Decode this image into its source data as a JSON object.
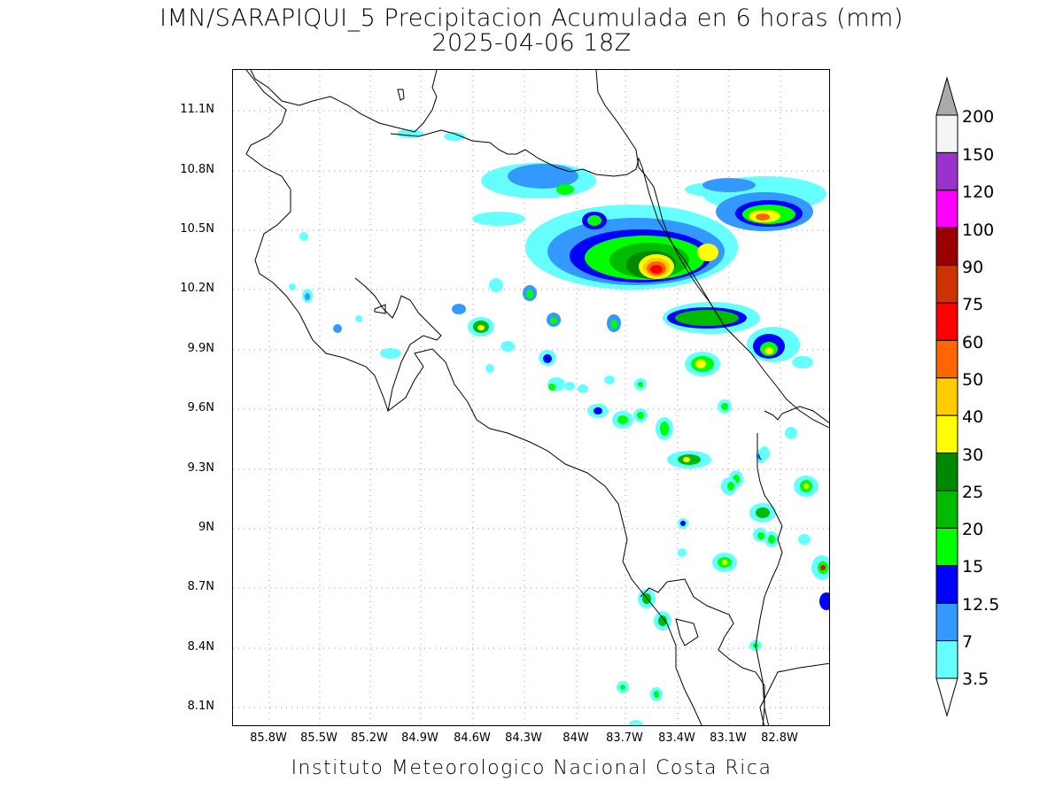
{
  "title": {
    "line1": "IMN/SARAPIQUI_5 Precipitacion Acumulada en 6 horas (mm)",
    "line2": "2025-04-06 18Z"
  },
  "footer": "Instituto Meteorologico Nacional Costa Rica",
  "axes": {
    "lat_labels": [
      "11.1N",
      "10.8N",
      "10.5N",
      "10.2N",
      "9.9N",
      "9.6N",
      "9.3N",
      "9N",
      "8.7N",
      "8.4N",
      "8.1N"
    ],
    "lon_labels": [
      "85.8W",
      "85.5W",
      "85.2W",
      "84.9W",
      "84.6W",
      "84.3W",
      "84W",
      "83.7W",
      "83.4W",
      "83.1W",
      "82.8W"
    ],
    "grid": "dotted"
  },
  "colorbar": {
    "levels": [
      "200",
      "150",
      "120",
      "100",
      "90",
      "75",
      "60",
      "50",
      "40",
      "30",
      "25",
      "20",
      "15",
      "12.5",
      "7",
      "3.5"
    ],
    "colors": [
      "#aaaaaa",
      "#f5f5f5",
      "#9933cc",
      "#ff00ff",
      "#990000",
      "#cc3300",
      "#ff0000",
      "#ff6600",
      "#ffcc00",
      "#ffff00",
      "#008800",
      "#00bb00",
      "#00ff00",
      "#0000ff",
      "#3399ff",
      "#66ffff",
      "#ffffff"
    ]
  }
}
